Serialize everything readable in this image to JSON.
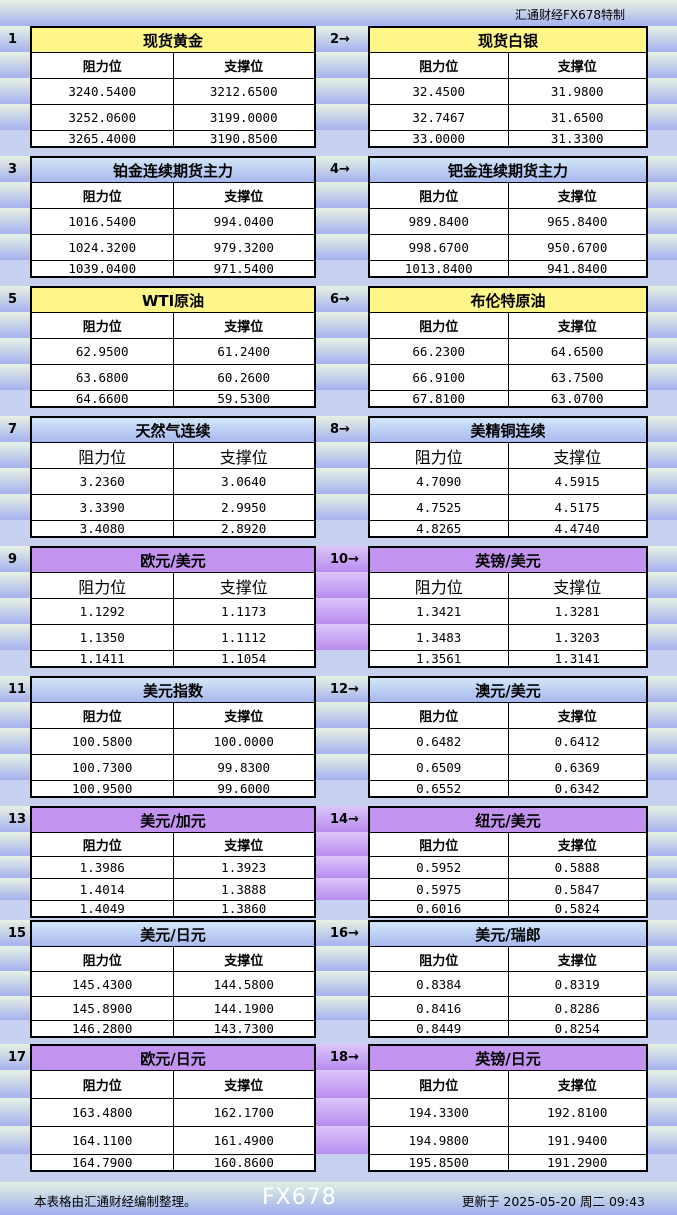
{
  "title": "汇通财经FX678特制",
  "col_resist": "阻力位",
  "col_support": "支撑位",
  "blocks": [
    {
      "color": "yellow",
      "left": {
        "num": "1",
        "name": "现货黄金",
        "rows": [
          [
            "3240.5400",
            "3212.6500"
          ],
          [
            "3252.0600",
            "3199.0000"
          ],
          [
            "3265.4000",
            "3190.8500"
          ]
        ]
      },
      "right": {
        "num": "2→",
        "name": "现货白银",
        "rows": [
          [
            "32.4500",
            "31.9800"
          ],
          [
            "32.7467",
            "31.6500"
          ],
          [
            "33.0000",
            "31.3300"
          ]
        ]
      }
    },
    {
      "color": "blue",
      "left": {
        "num": "3",
        "name": "铂金连续期货主力",
        "rows": [
          [
            "1016.5400",
            "994.0400"
          ],
          [
            "1024.3200",
            "979.3200"
          ],
          [
            "1039.0400",
            "971.5400"
          ]
        ]
      },
      "right": {
        "num": "4→",
        "name": "钯金连续期货主力",
        "rows": [
          [
            "989.8400",
            "965.8400"
          ],
          [
            "998.6700",
            "950.6700"
          ],
          [
            "1013.8400",
            "941.8400"
          ]
        ]
      }
    },
    {
      "color": "yellow",
      "left": {
        "num": "5",
        "name": "WTI原油",
        "rows": [
          [
            "62.9500",
            "61.2400"
          ],
          [
            "63.6800",
            "60.2600"
          ],
          [
            "64.6600",
            "59.5300"
          ]
        ]
      },
      "right": {
        "num": "6→",
        "name": "布伦特原油",
        "rows": [
          [
            "66.2300",
            "64.6500"
          ],
          [
            "66.9100",
            "63.7500"
          ],
          [
            "67.8100",
            "63.0700"
          ]
        ]
      }
    },
    {
      "color": "blue",
      "big": true,
      "left": {
        "num": "7",
        "name": "天然气连续",
        "rows": [
          [
            "3.2360",
            "3.0640"
          ],
          [
            "3.3390",
            "2.9950"
          ],
          [
            "3.4080",
            "2.8920"
          ]
        ]
      },
      "right": {
        "num": "8→",
        "name": "美精铜连续",
        "rows": [
          [
            "4.7090",
            "4.5915"
          ],
          [
            "4.7525",
            "4.5175"
          ],
          [
            "4.8265",
            "4.4740"
          ]
        ]
      }
    },
    {
      "color": "purple",
      "big": true,
      "left": {
        "num": "9",
        "name": "欧元/美元",
        "rows": [
          [
            "1.1292",
            "1.1173"
          ],
          [
            "1.1350",
            "1.1112"
          ],
          [
            "1.1411",
            "1.1054"
          ]
        ]
      },
      "right": {
        "num": "10→",
        "name": "英镑/美元",
        "rows": [
          [
            "1.3421",
            "1.3281"
          ],
          [
            "1.3483",
            "1.3203"
          ],
          [
            "1.3561",
            "1.3141"
          ]
        ]
      }
    },
    {
      "color": "blue",
      "left": {
        "num": "11",
        "name": "美元指数",
        "rows": [
          [
            "100.5800",
            "100.0000"
          ],
          [
            "100.7300",
            "99.8300"
          ],
          [
            "100.9500",
            "99.6000"
          ]
        ]
      },
      "right": {
        "num": "12→",
        "name": "澳元/美元",
        "rows": [
          [
            "0.6482",
            "0.6412"
          ],
          [
            "0.6509",
            "0.6369"
          ],
          [
            "0.6552",
            "0.6342"
          ]
        ]
      }
    },
    {
      "color": "purple",
      "left": {
        "num": "13",
        "name": "美元/加元",
        "rows": [
          [
            "1.3986",
            "1.3923"
          ],
          [
            "1.4014",
            "1.3888"
          ],
          [
            "1.4049",
            "1.3860"
          ]
        ]
      },
      "right": {
        "num": "14→",
        "name": "纽元/美元",
        "rows": [
          [
            "0.5952",
            "0.5888"
          ],
          [
            "0.5975",
            "0.5847"
          ],
          [
            "0.6016",
            "0.5824"
          ]
        ]
      }
    },
    {
      "color": "blue",
      "left": {
        "num": "15",
        "name": "美元/日元",
        "rows": [
          [
            "145.4300",
            "144.5800"
          ],
          [
            "145.8900",
            "144.1900"
          ],
          [
            "146.2800",
            "143.7300"
          ]
        ]
      },
      "right": {
        "num": "16→",
        "name": "美元/瑞郎",
        "rows": [
          [
            "0.8384",
            "0.8319"
          ],
          [
            "0.8416",
            "0.8286"
          ],
          [
            "0.8449",
            "0.8254"
          ]
        ]
      }
    },
    {
      "color": "purple",
      "left": {
        "num": "17",
        "name": "欧元/日元",
        "rows": [
          [
            "163.4800",
            "162.1700"
          ],
          [
            "164.1100",
            "161.4900"
          ],
          [
            "164.7900",
            "160.8600"
          ]
        ]
      },
      "right": {
        "num": "18→",
        "name": "英镑/日元",
        "rows": [
          [
            "194.3300",
            "192.8100"
          ],
          [
            "194.9800",
            "191.9400"
          ],
          [
            "195.8500",
            "191.2900"
          ]
        ]
      }
    }
  ],
  "footer": {
    "note": "本表格由汇通财经编制整理。",
    "updated": "更新于 2025-05-20 周二 09:43"
  },
  "watermark": "FX678"
}
